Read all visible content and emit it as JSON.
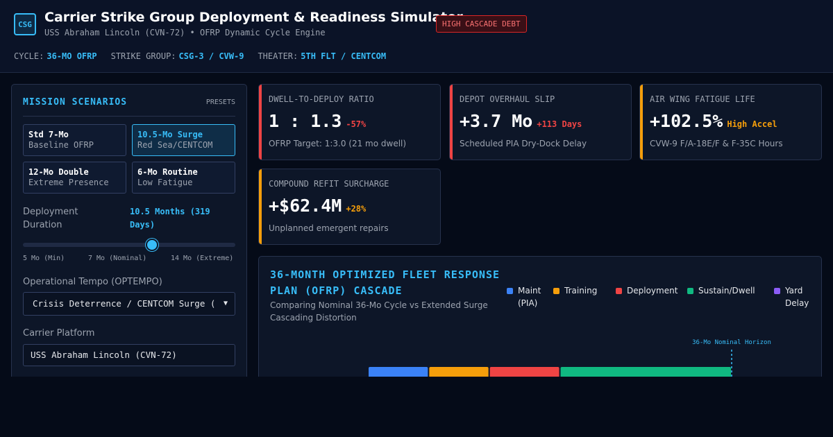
{
  "header": {
    "logo": "CSG",
    "title": "Carrier Strike Group Deployment & Readiness Simulator",
    "subtitle": "USS Abraham Lincoln (CVN-72) • OFRP Dynamic Cycle Engine",
    "badge": "HIGH CASCADE DEBT",
    "meta": [
      {
        "key": "CYCLE:",
        "value": "36-MO OFRP"
      },
      {
        "key": "STRIKE GROUP:",
        "value": "CSG-3 / CVW-9"
      },
      {
        "key": "THEATER:",
        "value": "5TH FLT / CENTCOM"
      }
    ]
  },
  "scenarios": {
    "title": "MISSION SCENARIOS",
    "presets_label": "PRESETS",
    "items": [
      {
        "name": "Std 7-Mo",
        "desc": "Baseline OFRP",
        "active": false
      },
      {
        "name": "10.5-Mo Surge",
        "desc": "Red Sea/CENTCOM",
        "active": true
      },
      {
        "name": "12-Mo Double",
        "desc": "Extreme Presence",
        "active": false
      },
      {
        "name": "6-Mo Routine",
        "desc": "Low Fatigue",
        "active": false
      }
    ]
  },
  "controls": {
    "duration_label_1": "Deployment",
    "duration_label_2": "Duration",
    "duration_value": "10.5 Months (319 Days)",
    "slider_fraction": 0.607,
    "ticks": [
      "5 Mo (Min)",
      "7 Mo (Nominal)",
      "14 Mo (Extreme)"
    ],
    "optempo_label": "Operational Tempo (OPTEMPO)",
    "optempo_value": "Crisis Deterrence / CENTCOM Surge (",
    "carrier_label": "Carrier Platform",
    "carrier_value": "USS Abraham Lincoln (CVN-72)"
  },
  "metrics": [
    {
      "label": "DWELL-TO-DEPLOY RATIO",
      "value": "1 : 1.3",
      "delta": "-57%",
      "note": "OFRP Target: 1:3.0 (21 mo dwell)",
      "accent": "#ef4444",
      "delta_color": "#ef4444"
    },
    {
      "label": "DEPOT OVERHAUL SLIP",
      "value": "+3.7 Mo",
      "delta": "+113 Days",
      "note": "Scheduled PIA Dry-Dock Delay",
      "accent": "#ef4444",
      "delta_color": "#ef4444"
    },
    {
      "label": "AIR WING FATIGUE LIFE",
      "value": "+102.5%",
      "delta": "High Accel",
      "note": "CVW-9 F/A-18E/F & F-35C Hours",
      "accent": "#f59e0b",
      "delta_color": "#f59e0b"
    },
    {
      "label": "COMPOUND REFIT SURCHARGE",
      "value": "+$62.4M",
      "delta": "+28%",
      "note": "Unplanned emergent repairs",
      "accent": "#f59e0b",
      "delta_color": "#f59e0b"
    }
  ],
  "chart_panel": {
    "title": "36-MONTH OPTIMIZED FLEET RESPONSE PLAN (OFRP) CASCADE",
    "subtitle": "Comparing Nominal 36-Mo Cycle vs Extended Surge Cascading Distortion",
    "horizon_label": "36-Mo Nominal Horizon",
    "legend": [
      {
        "name": "Maint (PIA)",
        "color": "#3b82f6"
      },
      {
        "name": "Training",
        "color": "#f59e0b"
      },
      {
        "name": "Deployment",
        "color": "#ef4444"
      },
      {
        "name": "Sustain/Dwell",
        "color": "#10b981"
      },
      {
        "name": "Yard Delay",
        "color": "#8b5cf6"
      }
    ],
    "nominal_segments": [
      {
        "phase": "Maint (PIA)",
        "color": "#3b82f6",
        "months": 6
      },
      {
        "phase": "Training",
        "color": "#f59e0b",
        "months": 6
      },
      {
        "phase": "Deployment",
        "color": "#ef4444",
        "months": 7
      },
      {
        "phase": "Sustain/Dwell",
        "color": "#10b981",
        "months": 17
      }
    ],
    "horizon_month": 36
  }
}
